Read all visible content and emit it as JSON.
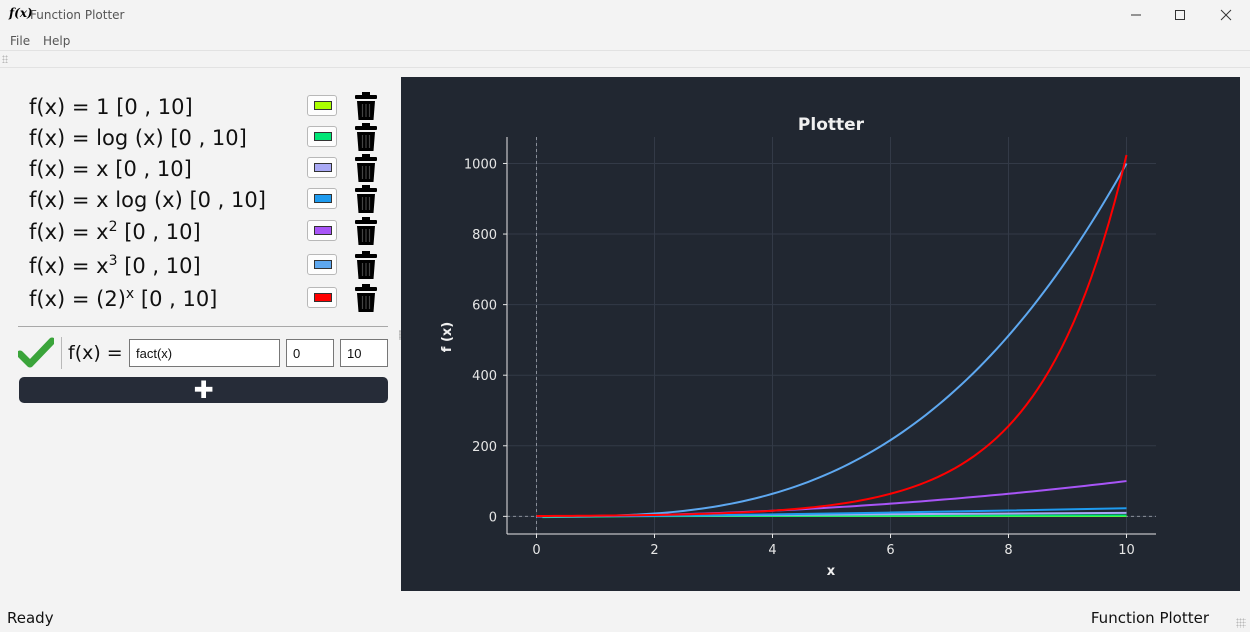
{
  "window": {
    "icon_text": "f(x)",
    "title": "Function Plotter",
    "minimize_glyph": "—",
    "maximize_glyph": "☐",
    "close_glyph": "✕"
  },
  "menu": [
    {
      "label": "File"
    },
    {
      "label": "Help"
    }
  ],
  "functions": [
    {
      "prefix": "f(x) = ",
      "expr": "1",
      "sup": "",
      "range": " [0 , 10]",
      "color": "#aaff00"
    },
    {
      "prefix": "f(x) = ",
      "expr": "log (x)",
      "sup": "",
      "range": " [0 , 10]",
      "color": "#00e676"
    },
    {
      "prefix": "f(x) = ",
      "expr": "x",
      "sup": "",
      "range": " [0 , 10]",
      "color": "#a9a9f5"
    },
    {
      "prefix": "f(x) = ",
      "expr": "x log (x)",
      "sup": "",
      "range": " [0 , 10]",
      "color": "#1e9bef"
    },
    {
      "prefix": "f(x) = ",
      "expr": "x",
      "sup": "2",
      "range": " [0 , 10]",
      "color": "#a855f7"
    },
    {
      "prefix": "f(x) = ",
      "expr": "x",
      "sup": "3",
      "range": " [0 , 10]",
      "color": "#5ea8f0"
    },
    {
      "prefix": "f(x) = ",
      "expr": "(2)",
      "sup": "x",
      "range": " [0 , 10]",
      "color": "#ff0000"
    }
  ],
  "editor": {
    "fx_label": "f(x) =",
    "expression_value": "fact(x)",
    "min_value": "0",
    "max_value": "10",
    "add_glyph": "✚"
  },
  "status": {
    "left": "Ready",
    "right": "Function Plotter"
  },
  "chart_data": {
    "type": "line",
    "title": "Plotter",
    "xlabel": "x",
    "ylabel": "f (x)",
    "xlim": [
      -0.5,
      10.5
    ],
    "ylim": [
      -50,
      1075
    ],
    "xticks": [
      0,
      2,
      4,
      6,
      8,
      10
    ],
    "yticks": [
      0,
      200,
      400,
      600,
      800,
      1000
    ],
    "grid": true,
    "background": "#212731",
    "series": [
      {
        "color": "#aaff00",
        "x": [
          0,
          10
        ],
        "y": [
          1,
          1
        ]
      },
      {
        "color": "#00e676",
        "x": [
          0.1,
          2,
          4,
          6,
          8,
          10
        ],
        "y": [
          -2.3,
          0.69,
          1.39,
          1.79,
          2.08,
          2.3
        ]
      },
      {
        "color": "#a9a9f5",
        "x": [
          0,
          10
        ],
        "y": [
          0,
          10
        ]
      },
      {
        "color": "#1e9bef",
        "x": [
          0,
          2,
          4,
          6,
          8,
          10
        ],
        "y": [
          0,
          1.39,
          5.55,
          10.75,
          16.64,
          23.03
        ]
      },
      {
        "color": "#a855f7",
        "x": [
          0,
          1,
          2,
          3,
          4,
          5,
          6,
          7,
          8,
          9,
          10
        ],
        "y": [
          0,
          1,
          4,
          9,
          16,
          25,
          36,
          49,
          64,
          81,
          100
        ]
      },
      {
        "color": "#5ea8f0",
        "x": [
          0,
          1,
          2,
          3,
          4,
          5,
          6,
          7,
          8,
          9,
          10
        ],
        "y": [
          0,
          1,
          8,
          27,
          64,
          125,
          216,
          343,
          512,
          729,
          1000
        ]
      },
      {
        "color": "#ff0000",
        "x": [
          0,
          1,
          2,
          3,
          4,
          5,
          6,
          7,
          8,
          9,
          10
        ],
        "y": [
          1,
          2,
          4,
          8,
          16,
          32,
          64,
          128,
          256,
          512,
          1024
        ]
      }
    ]
  }
}
